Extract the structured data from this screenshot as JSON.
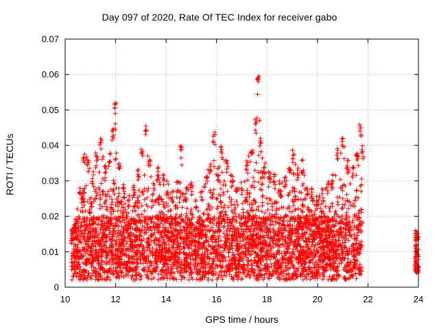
{
  "chart_data": {
    "type": "scatter",
    "title": "Day 097 of 2020, Rate Of TEC Index for receiver gabo",
    "xlabel": "GPS time / hours",
    "ylabel": "ROTI / TECUs",
    "xlim": [
      10,
      24
    ],
    "ylim": [
      0,
      0.07
    ],
    "x_ticks": [
      "10",
      "12",
      "14",
      "16",
      "18",
      "20",
      "22",
      "24"
    ],
    "y_ticks": [
      "0",
      "0.01",
      "0.02",
      "0.03",
      "0.04",
      "0.05",
      "0.06",
      "0.07"
    ],
    "grid": true,
    "marker": "+",
    "color": "#ff0000",
    "envelope_upper": [
      [
        10.25,
        0.016
      ],
      [
        10.4,
        0.019
      ],
      [
        10.6,
        0.03
      ],
      [
        10.75,
        0.038
      ],
      [
        10.9,
        0.036
      ],
      [
        11.1,
        0.032
      ],
      [
        11.25,
        0.038
      ],
      [
        11.4,
        0.042
      ],
      [
        11.6,
        0.034
      ],
      [
        11.75,
        0.038
      ],
      [
        11.9,
        0.046
      ],
      [
        12.0,
        0.052
      ],
      [
        12.15,
        0.036
      ],
      [
        12.3,
        0.029
      ],
      [
        12.5,
        0.026
      ],
      [
        12.7,
        0.029
      ],
      [
        12.9,
        0.034
      ],
      [
        13.05,
        0.04
      ],
      [
        13.2,
        0.047
      ],
      [
        13.35,
        0.036
      ],
      [
        13.5,
        0.03
      ],
      [
        13.7,
        0.034
      ],
      [
        13.9,
        0.032
      ],
      [
        14.05,
        0.03
      ],
      [
        14.25,
        0.028
      ],
      [
        14.45,
        0.03
      ],
      [
        14.6,
        0.04
      ],
      [
        14.8,
        0.028
      ],
      [
        15.0,
        0.03
      ],
      [
        15.2,
        0.026
      ],
      [
        15.4,
        0.028
      ],
      [
        15.6,
        0.032
      ],
      [
        15.75,
        0.036
      ],
      [
        15.9,
        0.044
      ],
      [
        16.05,
        0.034
      ],
      [
        16.2,
        0.04
      ],
      [
        16.4,
        0.036
      ],
      [
        16.6,
        0.032
      ],
      [
        16.8,
        0.028
      ],
      [
        17.0,
        0.03
      ],
      [
        17.2,
        0.036
      ],
      [
        17.4,
        0.04
      ],
      [
        17.55,
        0.048
      ],
      [
        17.65,
        0.062
      ],
      [
        17.75,
        0.042
      ],
      [
        17.9,
        0.036
      ],
      [
        18.1,
        0.034
      ],
      [
        18.3,
        0.032
      ],
      [
        18.5,
        0.03
      ],
      [
        18.7,
        0.032
      ],
      [
        18.9,
        0.036
      ],
      [
        19.05,
        0.039
      ],
      [
        19.2,
        0.034
      ],
      [
        19.4,
        0.036
      ],
      [
        19.6,
        0.03
      ],
      [
        19.8,
        0.028
      ],
      [
        20.0,
        0.026
      ],
      [
        20.2,
        0.028
      ],
      [
        20.4,
        0.03
      ],
      [
        20.6,
        0.032
      ],
      [
        20.8,
        0.04
      ],
      [
        21.0,
        0.042
      ],
      [
        21.2,
        0.036
      ],
      [
        21.4,
        0.034
      ],
      [
        21.55,
        0.038
      ],
      [
        21.7,
        0.046
      ],
      [
        21.78,
        0.04
      ]
    ],
    "late_cluster": {
      "x_range": [
        23.85,
        24.0
      ],
      "y_range": [
        0.004,
        0.016
      ]
    },
    "baseline_y": 0.006
  }
}
